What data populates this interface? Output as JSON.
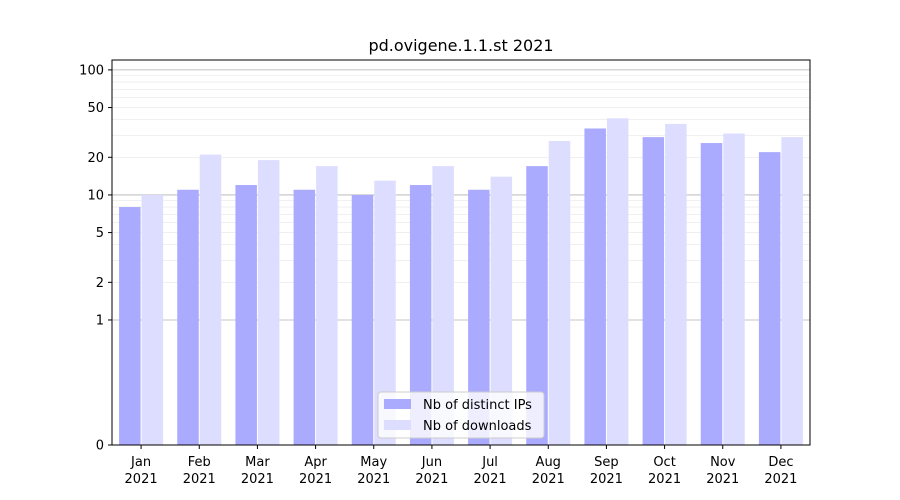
{
  "chart_data": {
    "type": "bar",
    "title": "pd.ovigene.1.1.st 2021",
    "xlabel": "",
    "ylabel": "",
    "categories": [
      [
        "Jan",
        "2021"
      ],
      [
        "Feb",
        "2021"
      ],
      [
        "Mar",
        "2021"
      ],
      [
        "Apr",
        "2021"
      ],
      [
        "May",
        "2021"
      ],
      [
        "Jun",
        "2021"
      ],
      [
        "Jul",
        "2021"
      ],
      [
        "Aug",
        "2021"
      ],
      [
        "Sep",
        "2021"
      ],
      [
        "Oct",
        "2021"
      ],
      [
        "Nov",
        "2021"
      ],
      [
        "Dec",
        "2021"
      ]
    ],
    "series": [
      {
        "name": "Nb of distinct IPs",
        "color": "#aaaaff",
        "values": [
          8,
          11,
          12,
          11,
          10,
          12,
          11,
          17,
          34,
          29,
          26,
          22
        ]
      },
      {
        "name": "Nb of downloads",
        "color": "#ddddff",
        "values": [
          10,
          21,
          19,
          17,
          13,
          17,
          14,
          27,
          41,
          37,
          31,
          29
        ]
      }
    ],
    "yscale": "symlog",
    "ylim": [
      0,
      120
    ],
    "yticks": [
      0,
      1,
      2,
      5,
      10,
      20,
      50,
      100
    ],
    "ytick_labels": [
      "0",
      "1",
      "2",
      "5",
      "10",
      "20",
      "50",
      "100"
    ],
    "grid": true,
    "legend_position": "bottom-center"
  }
}
